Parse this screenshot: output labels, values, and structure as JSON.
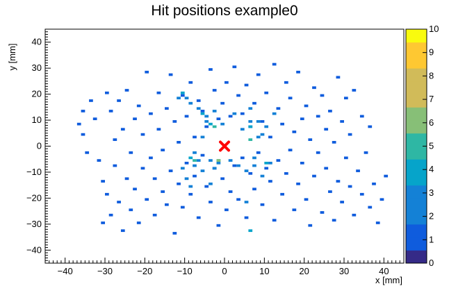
{
  "chart_data": {
    "type": "heatmap",
    "title": "Hit positions example0",
    "xlabel": "x [mm]",
    "ylabel": "y [mm]",
    "xlim": [
      -45,
      45
    ],
    "ylim": [
      -45,
      45
    ],
    "x_ticks": [
      -40,
      -30,
      -20,
      -10,
      0,
      10,
      20,
      30,
      40
    ],
    "y_ticks": [
      -40,
      -30,
      -20,
      -10,
      0,
      10,
      20,
      30,
      40
    ],
    "x_tick_labels": [
      "−40",
      "−30",
      "−20",
      "−10",
      "0",
      "10",
      "20",
      "30",
      "40"
    ],
    "y_tick_labels": [
      "−40",
      "−30",
      "−20",
      "−10",
      "0",
      "10",
      "20",
      "30",
      "40"
    ],
    "bin_size": 1,
    "colorbar": {
      "min": 0,
      "max": 10,
      "ticks": [
        0,
        1,
        2,
        3,
        4,
        5,
        6,
        7,
        8,
        9,
        10
      ],
      "tick_labels": [
        "0",
        "1",
        "2",
        "3",
        "4",
        "5",
        "6",
        "7",
        "8",
        "9",
        "10"
      ],
      "palette": [
        "#352a87",
        "#0f5cdd",
        "#1481d6",
        "#06a4ca",
        "#2eb7a4",
        "#87bf77",
        "#d1bb59",
        "#fec832",
        "#f9fb0e"
      ]
    },
    "marker": {
      "x": 0,
      "y": 0,
      "shape": "x",
      "color": "#ff0000"
    },
    "bins": [
      [
        -37,
        8,
        1
      ],
      [
        -36,
        13,
        1
      ],
      [
        -36,
        4,
        1
      ],
      [
        -35,
        -3,
        1
      ],
      [
        -34,
        17,
        1
      ],
      [
        -33,
        10,
        1
      ],
      [
        -32,
        -6,
        1
      ],
      [
        -31,
        -14,
        1
      ],
      [
        -31,
        -30,
        1
      ],
      [
        -30,
        20,
        1
      ],
      [
        -30,
        -19,
        1
      ],
      [
        -29,
        13,
        1
      ],
      [
        -29,
        -27,
        1
      ],
      [
        -28,
        2,
        1
      ],
      [
        -28,
        -8,
        1
      ],
      [
        -27,
        -22,
        1
      ],
      [
        -27,
        17,
        1
      ],
      [
        -26,
        -33,
        1
      ],
      [
        -26,
        6,
        1
      ],
      [
        -25,
        -13,
        1
      ],
      [
        -25,
        21,
        1
      ],
      [
        -24,
        -3,
        1
      ],
      [
        -24,
        -25,
        1
      ],
      [
        -23,
        10,
        1
      ],
      [
        -23,
        -17,
        1
      ],
      [
        -22,
        -30,
        1
      ],
      [
        -22,
        15,
        1
      ],
      [
        -21,
        -9,
        1
      ],
      [
        -21,
        4,
        1
      ],
      [
        -20,
        -21,
        1
      ],
      [
        -20,
        28,
        1
      ],
      [
        -19,
        -5,
        1
      ],
      [
        -19,
        12,
        1
      ],
      [
        -18,
        -13,
        1
      ],
      [
        -18,
        -27,
        1
      ],
      [
        -17,
        20,
        1
      ],
      [
        -17,
        6,
        1
      ],
      [
        -16,
        -18,
        1
      ],
      [
        -16,
        -2,
        1
      ],
      [
        -15,
        14,
        1
      ],
      [
        -15,
        -23,
        1
      ],
      [
        -14,
        27,
        1
      ],
      [
        -14,
        -10,
        1
      ],
      [
        -13,
        9,
        1
      ],
      [
        -13,
        -34,
        1
      ],
      [
        -12,
        -15,
        1
      ],
      [
        -12,
        1,
        1
      ],
      [
        -11,
        19,
        1
      ],
      [
        -11,
        -24,
        1
      ],
      [
        -10,
        -7,
        1
      ],
      [
        -10,
        11,
        1
      ],
      [
        -9,
        -19,
        1
      ],
      [
        -9,
        24,
        1
      ],
      [
        -8,
        3,
        1
      ],
      [
        -8,
        -12,
        1
      ],
      [
        -7,
        17,
        1
      ],
      [
        -7,
        -28,
        1
      ],
      [
        -6,
        -4,
        1
      ],
      [
        -6,
        13,
        1
      ],
      [
        -5,
        -16,
        1
      ],
      [
        -5,
        7,
        1
      ],
      [
        -4,
        29,
        1
      ],
      [
        -4,
        -22,
        1
      ],
      [
        -3,
        -9,
        1
      ],
      [
        -3,
        21,
        1
      ],
      [
        -2,
        10,
        1
      ],
      [
        -2,
        -31,
        1
      ],
      [
        -1,
        -13,
        1
      ],
      [
        -1,
        16,
        1
      ],
      [
        0,
        -25,
        1
      ],
      [
        0,
        24,
        1
      ],
      [
        1,
        -18,
        1
      ],
      [
        1,
        11,
        1
      ],
      [
        2,
        -8,
        1
      ],
      [
        2,
        30,
        1
      ],
      [
        3,
        19,
        1
      ],
      [
        3,
        -21,
        1
      ],
      [
        4,
        -5,
        1
      ],
      [
        4,
        12,
        1
      ],
      [
        5,
        -28,
        1
      ],
      [
        5,
        23,
        1
      ],
      [
        6,
        7,
        1
      ],
      [
        6,
        -11,
        1
      ],
      [
        7,
        16,
        1
      ],
      [
        7,
        -17,
        1
      ],
      [
        8,
        -3,
        1
      ],
      [
        8,
        27,
        1
      ],
      [
        9,
        -23,
        1
      ],
      [
        9,
        9,
        1
      ],
      [
        10,
        -9,
        1
      ],
      [
        10,
        20,
        1
      ],
      [
        11,
        -14,
        1
      ],
      [
        11,
        3,
        1
      ],
      [
        12,
        31,
        1
      ],
      [
        12,
        -29,
        1
      ],
      [
        13,
        -6,
        1
      ],
      [
        13,
        14,
        1
      ],
      [
        14,
        -19,
        1
      ],
      [
        14,
        8,
        1
      ],
      [
        15,
        24,
        1
      ],
      [
        15,
        -11,
        1
      ],
      [
        16,
        -2,
        1
      ],
      [
        16,
        18,
        1
      ],
      [
        17,
        -25,
        1
      ],
      [
        17,
        5,
        1
      ],
      [
        18,
        -15,
        1
      ],
      [
        18,
        28,
        1
      ],
      [
        19,
        10,
        1
      ],
      [
        19,
        -7,
        1
      ],
      [
        20,
        -21,
        1
      ],
      [
        20,
        15,
        1
      ],
      [
        21,
        2,
        1
      ],
      [
        21,
        -31,
        1
      ],
      [
        22,
        22,
        1
      ],
      [
        22,
        -12,
        1
      ],
      [
        23,
        -3,
        1
      ],
      [
        23,
        11,
        1
      ],
      [
        24,
        -26,
        1
      ],
      [
        24,
        19,
        1
      ],
      [
        25,
        6,
        1
      ],
      [
        25,
        -9,
        1
      ],
      [
        26,
        -18,
        1
      ],
      [
        26,
        13,
        1
      ],
      [
        27,
        -29,
        1
      ],
      [
        27,
        1,
        1
      ],
      [
        28,
        26,
        1
      ],
      [
        28,
        -14,
        1
      ],
      [
        29,
        9,
        1
      ],
      [
        29,
        -22,
        1
      ],
      [
        30,
        -5,
        1
      ],
      [
        30,
        18,
        1
      ],
      [
        31,
        -16,
        1
      ],
      [
        31,
        4,
        1
      ],
      [
        32,
        -27,
        1
      ],
      [
        32,
        21,
        1
      ],
      [
        33,
        -10,
        1
      ],
      [
        34,
        11,
        1
      ],
      [
        34,
        -19,
        1
      ],
      [
        35,
        -3,
        1
      ],
      [
        36,
        -24,
        1
      ],
      [
        36,
        7,
        1
      ],
      [
        37,
        -15,
        1
      ],
      [
        38,
        -30,
        1
      ],
      [
        39,
        -21,
        1
      ],
      [
        40,
        -12,
        1
      ],
      [
        -12,
        18,
        2
      ],
      [
        -10,
        -13,
        2
      ],
      [
        -9,
        16,
        2
      ],
      [
        -8,
        -8,
        2
      ],
      [
        -7,
        14,
        2
      ],
      [
        -6,
        -10,
        2
      ],
      [
        -5,
        9,
        2
      ],
      [
        -4,
        -6,
        2
      ],
      [
        -3,
        13,
        2
      ],
      [
        -2,
        -7,
        2
      ],
      [
        -1,
        8,
        2
      ],
      [
        1,
        -6,
        2
      ],
      [
        2,
        12,
        2
      ],
      [
        3,
        -8,
        2
      ],
      [
        4,
        6,
        2
      ],
      [
        5,
        -10,
        2
      ],
      [
        6,
        14,
        2
      ],
      [
        7,
        -5,
        2
      ],
      [
        8,
        9,
        2
      ],
      [
        9,
        -12,
        2
      ],
      [
        10,
        7,
        2
      ],
      [
        11,
        -7,
        2
      ],
      [
        12,
        12,
        2
      ],
      [
        -11,
        -9,
        2
      ],
      [
        9,
        4,
        2
      ],
      [
        -6,
        3,
        2
      ],
      [
        -10,
        18,
        3
      ],
      [
        -7,
        -6,
        3
      ],
      [
        -5,
        11,
        3
      ],
      [
        -3,
        -9,
        3
      ],
      [
        6,
        9,
        3
      ],
      [
        7,
        -8,
        3
      ],
      [
        8,
        3,
        3
      ],
      [
        -8,
        -3,
        3
      ],
      [
        -4,
        -15,
        3
      ],
      [
        5,
        -22,
        3
      ],
      [
        -9,
        -16,
        3
      ],
      [
        -4,
        8,
        4
      ],
      [
        -6,
        12,
        4
      ],
      [
        -9,
        -5,
        4
      ],
      [
        -2,
        -6,
        4
      ],
      [
        6,
        7,
        4
      ],
      [
        10,
        -7,
        4
      ],
      [
        -11,
        20,
        4
      ],
      [
        6,
        -33,
        4
      ],
      [
        -3,
        7,
        5
      ],
      [
        6,
        2,
        5
      ],
      [
        -8,
        -6,
        5
      ],
      [
        -2,
        -6,
        6
      ]
    ]
  }
}
